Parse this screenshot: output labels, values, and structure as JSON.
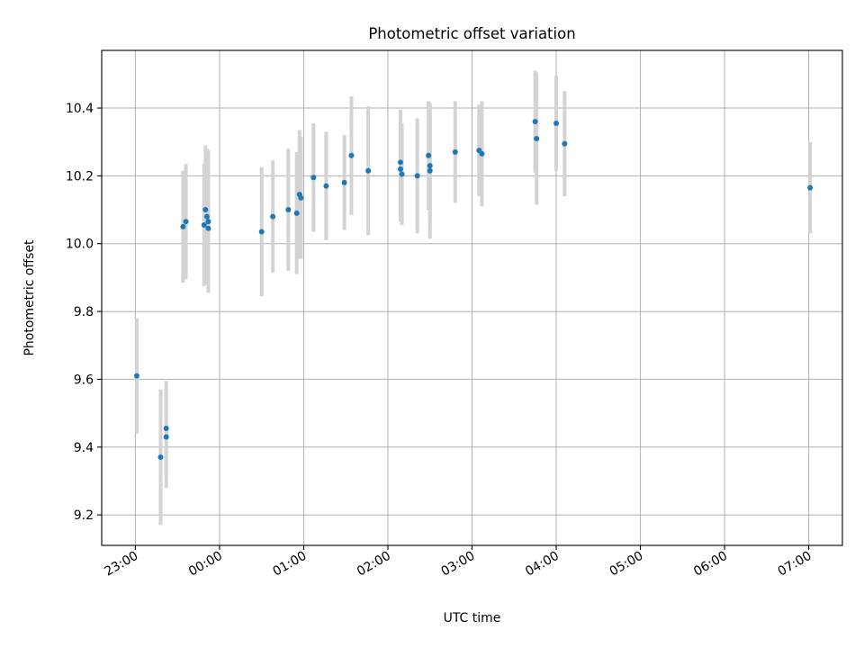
{
  "chart_data": {
    "type": "scatter",
    "title": "Photometric offset variation",
    "xlabel": "UTC time",
    "ylabel": "Photometric offset",
    "grid": true,
    "x_type": "time",
    "xlim": [
      "22:36",
      "07:24"
    ],
    "ylim": [
      9.11,
      10.57
    ],
    "x_ticks": [
      "23:00",
      "00:00",
      "01:00",
      "02:00",
      "03:00",
      "04:00",
      "05:00",
      "06:00",
      "07:00"
    ],
    "y_ticks": [
      9.2,
      9.4,
      9.6,
      9.8,
      10.0,
      10.2,
      10.4
    ],
    "y_tick_labels": [
      "9.2",
      "9.4",
      "9.6",
      "9.8",
      "10.0",
      "10.2",
      "10.4"
    ],
    "series": [
      {
        "color": "#1f77b4",
        "error_color": "#d3d3d3",
        "points": [
          {
            "x": "23:01",
            "y": 9.61,
            "err": 0.17
          },
          {
            "x": "23:18",
            "y": 9.37,
            "err": 0.2
          },
          {
            "x": "23:22",
            "y": 9.455,
            "err": 0.14
          },
          {
            "x": "23:22",
            "y": 9.43,
            "err": 0.15
          },
          {
            "x": "23:34",
            "y": 10.05,
            "err": 0.165
          },
          {
            "x": "23:36",
            "y": 10.065,
            "err": 0.17
          },
          {
            "x": "23:49",
            "y": 10.055,
            "err": 0.18
          },
          {
            "x": "23:50",
            "y": 10.1,
            "err": 0.19
          },
          {
            "x": "23:51",
            "y": 10.08,
            "err": 0.2
          },
          {
            "x": "23:52",
            "y": 10.065,
            "err": 0.21
          },
          {
            "x": "23:52",
            "y": 10.045,
            "err": 0.17
          },
          {
            "x": "00:30",
            "y": 10.035,
            "err": 0.19
          },
          {
            "x": "00:38",
            "y": 10.08,
            "err": 0.165
          },
          {
            "x": "00:49",
            "y": 10.1,
            "err": 0.18
          },
          {
            "x": "00:55",
            "y": 10.09,
            "err": 0.18
          },
          {
            "x": "00:57",
            "y": 10.145,
            "err": 0.19
          },
          {
            "x": "00:58",
            "y": 10.135,
            "err": 0.18
          },
          {
            "x": "01:07",
            "y": 10.195,
            "err": 0.16
          },
          {
            "x": "01:16",
            "y": 10.17,
            "err": 0.16
          },
          {
            "x": "01:29",
            "y": 10.18,
            "err": 0.14
          },
          {
            "x": "01:34",
            "y": 10.26,
            "err": 0.175
          },
          {
            "x": "01:46",
            "y": 10.215,
            "err": 0.19
          },
          {
            "x": "02:09",
            "y": 10.24,
            "err": 0.155
          },
          {
            "x": "02:09",
            "y": 10.22,
            "err": 0.155
          },
          {
            "x": "02:10",
            "y": 10.205,
            "err": 0.15
          },
          {
            "x": "02:21",
            "y": 10.2,
            "err": 0.17
          },
          {
            "x": "02:29",
            "y": 10.26,
            "err": 0.16
          },
          {
            "x": "02:30",
            "y": 10.23,
            "err": 0.17
          },
          {
            "x": "02:30",
            "y": 10.215,
            "err": 0.2
          },
          {
            "x": "02:48",
            "y": 10.27,
            "err": 0.15
          },
          {
            "x": "03:05",
            "y": 10.275,
            "err": 0.135
          },
          {
            "x": "03:07",
            "y": 10.265,
            "err": 0.155
          },
          {
            "x": "03:45",
            "y": 10.36,
            "err": 0.15
          },
          {
            "x": "03:46",
            "y": 10.31,
            "err": 0.195
          },
          {
            "x": "04:00",
            "y": 10.355,
            "err": 0.14
          },
          {
            "x": "04:06",
            "y": 10.295,
            "err": 0.155
          },
          {
            "x": "07:01",
            "y": 10.165,
            "err": 0.135
          }
        ]
      }
    ]
  }
}
